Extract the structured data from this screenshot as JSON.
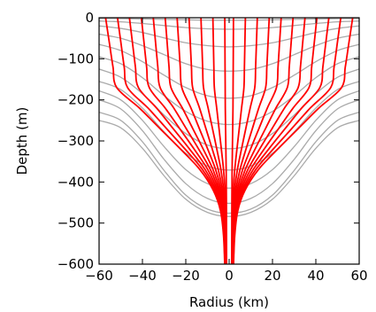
{
  "chart_data": {
    "type": "line",
    "title": "",
    "xlabel": "Radius (km)",
    "ylabel": "Depth (m)",
    "xlim": [
      -60,
      60
    ],
    "ylim": [
      -600,
      0
    ],
    "x_ticks": [
      -60,
      -40,
      -20,
      0,
      20,
      40,
      60
    ],
    "y_ticks": [
      0,
      -100,
      -200,
      -300,
      -400,
      -500,
      -600
    ],
    "x_tick_labels": [
      "−60",
      "−40",
      "−20",
      "0",
      "20",
      "40",
      "60"
    ],
    "y_tick_labels": [
      "0",
      "−100",
      "−200",
      "−300",
      "−400",
      "−500",
      "−600"
    ],
    "grid": false,
    "legend": "none",
    "colors": {
      "grey_lines": "#aaaaaa",
      "red_lines": "#ff0000",
      "frame": "#000000"
    },
    "series": [
      {
        "style": "grey layered surfaces",
        "x": [
          -60,
          -50,
          -40,
          -30,
          -20,
          -10,
          0,
          10,
          20,
          30,
          40,
          50,
          60
        ],
        "y_profiles": [
          [
            -2,
            -2,
            -3,
            -4,
            -5,
            -6,
            -6,
            -6,
            -5,
            -4,
            -3,
            -2,
            -2
          ],
          [
            -8,
            -10,
            -14,
            -19,
            -24,
            -27,
            -28,
            -27,
            -24,
            -19,
            -14,
            -10,
            -8
          ],
          [
            -20,
            -26,
            -36,
            -49,
            -61,
            -68,
            -71,
            -68,
            -61,
            -49,
            -36,
            -26,
            -20
          ],
          [
            -40,
            -50,
            -68,
            -90,
            -112,
            -126,
            -130,
            -126,
            -112,
            -90,
            -68,
            -50,
            -40
          ],
          [
            -65,
            -80,
            -107,
            -140,
            -170,
            -190,
            -196,
            -190,
            -170,
            -140,
            -107,
            -80,
            -65
          ],
          [
            -95,
            -112,
            -146,
            -190,
            -228,
            -252,
            -260,
            -252,
            -228,
            -190,
            -146,
            -112,
            -95
          ],
          [
            -125,
            -145,
            -185,
            -237,
            -282,
            -310,
            -319,
            -310,
            -282,
            -237,
            -185,
            -145,
            -125
          ],
          [
            -155,
            -175,
            -220,
            -278,
            -330,
            -361,
            -371,
            -361,
            -330,
            -278,
            -220,
            -175,
            -155
          ],
          [
            -178,
            -200,
            -250,
            -314,
            -370,
            -404,
            -415,
            -404,
            -370,
            -314,
            -250,
            -200,
            -178
          ],
          [
            -200,
            -222,
            -275,
            -345,
            -404,
            -440,
            -452,
            -440,
            -404,
            -345,
            -275,
            -222,
            -200
          ],
          [
            -230,
            -250,
            -302,
            -372,
            -432,
            -466,
            -476,
            -466,
            -432,
            -372,
            -302,
            -250,
            -230
          ],
          [
            -250,
            -268,
            -318,
            -385,
            -442,
            -474,
            -484,
            -474,
            -442,
            -385,
            -318,
            -268,
            -250
          ]
        ]
      },
      {
        "style": "red converging paths",
        "start_x": [
          -57,
          -51.5,
          -46,
          -40.5,
          -35,
          -29.5,
          -24,
          -18.5,
          -13,
          -7.5,
          -2,
          2,
          7.5,
          13,
          18.5,
          24,
          29.5,
          35,
          40.5,
          46,
          51.5,
          57
        ],
        "converge_x": 0,
        "converge_depth": -600
      }
    ]
  }
}
